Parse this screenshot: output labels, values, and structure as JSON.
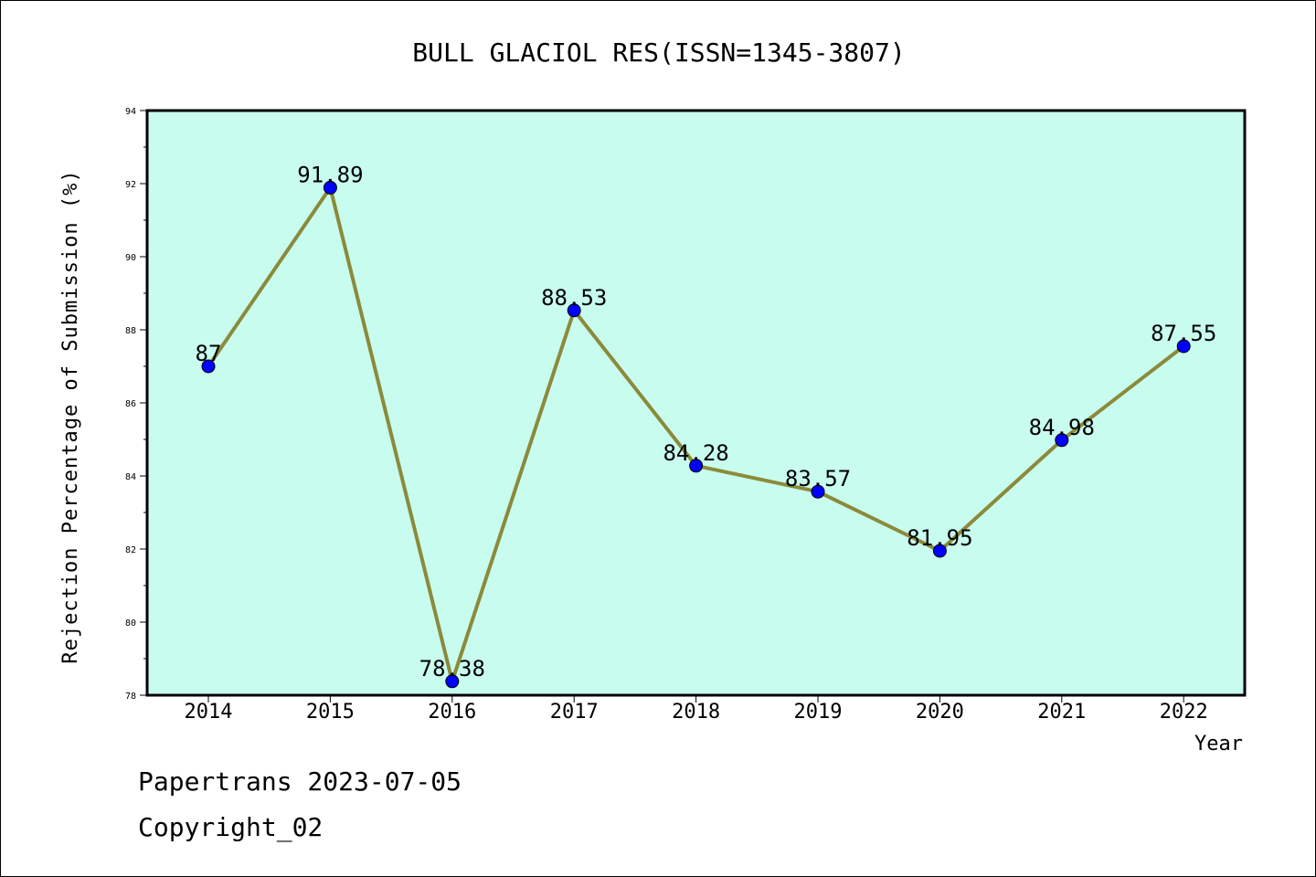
{
  "chart_data": {
    "type": "line",
    "title": "BULL GLACIOL RES(ISSN=1345-3807)",
    "xlabel": "Year",
    "ylabel": "Rejection Percentage of Submission (%)",
    "categories": [
      "2014",
      "2015",
      "2016",
      "2017",
      "2018",
      "2019",
      "2020",
      "2021",
      "2022"
    ],
    "values": [
      87,
      91.89,
      78.38,
      88.53,
      84.28,
      83.57,
      81.95,
      84.98,
      87.55
    ],
    "value_labels": [
      "87",
      "91.89",
      "78.38",
      "88.53",
      "84.28",
      "83.57",
      "81.95",
      "84.98",
      "87.55"
    ],
    "ylim": [
      78,
      94
    ],
    "yticks": [
      "78",
      "80",
      "82",
      "84",
      "86",
      "88",
      "90",
      "92",
      "94"
    ],
    "grid": false,
    "colors": {
      "plot_background": "#c8fcee",
      "line": "#8b8a3a",
      "marker": "#0000ff"
    }
  },
  "footer": {
    "line1": "Papertrans 2023-07-05",
    "line2": "Copyright_02"
  }
}
